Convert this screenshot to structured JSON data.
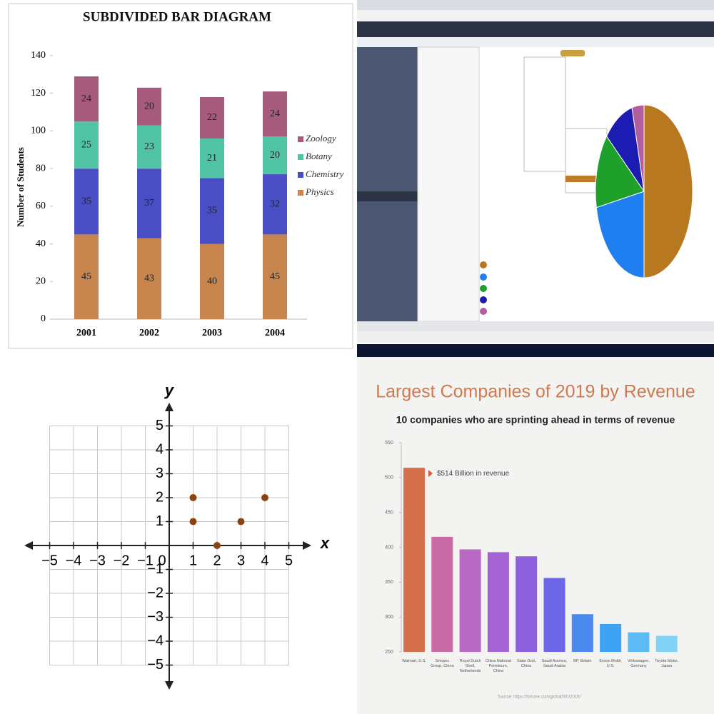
{
  "chart_data": [
    {
      "type": "stacked_bar",
      "title": "SUBDIVIDED BAR DIAGRAM",
      "y_label": "Number of Students",
      "categories": [
        "2001",
        "2002",
        "2003",
        "2004"
      ],
      "series": [
        {
          "name": "Physics",
          "color": "#c8864e",
          "values": [
            45,
            43,
            40,
            45
          ]
        },
        {
          "name": "Chemistry",
          "color": "#4a4ec4",
          "values": [
            35,
            37,
            35,
            32
          ]
        },
        {
          "name": "Botany",
          "color": "#52c4a6",
          "values": [
            25,
            23,
            21,
            20
          ]
        },
        {
          "name": "Zoology",
          "color": "#a65a7c",
          "values": [
            24,
            20,
            22,
            24
          ]
        }
      ],
      "ylim": [
        0,
        140
      ],
      "yticks": [
        0,
        20,
        40,
        60,
        80,
        100,
        120,
        140
      ],
      "legend": "right"
    },
    {
      "type": "pie",
      "values": [
        50,
        22,
        14,
        10,
        4
      ],
      "colors": [
        "#b7781f",
        "#1f7ff0",
        "#1fa02b",
        "#1c1cb2",
        "#b05e9e"
      ]
    },
    {
      "type": "scatter",
      "x_label": "x",
      "y_label": "y",
      "color": "#8b4513",
      "grid": true,
      "x": [
        1,
        1,
        2,
        3,
        4
      ],
      "values": [
        2,
        1,
        0,
        1,
        2
      ],
      "xlim": [
        -5,
        5
      ],
      "ylim": [
        -5,
        5
      ],
      "xticks": [
        {
          "value": -5,
          "label": "−5"
        },
        {
          "value": -4,
          "label": "−4"
        },
        {
          "value": -3,
          "label": "−3"
        },
        {
          "value": -2,
          "label": "−2"
        },
        {
          "value": -1,
          "label": "−1"
        },
        0,
        1,
        2,
        3,
        4,
        5
      ],
      "yticks": [
        {
          "value": -5,
          "label": "−5"
        },
        {
          "value": -4,
          "label": "−4"
        },
        {
          "value": -3,
          "label": "−3"
        },
        {
          "value": -2,
          "label": "−2"
        },
        {
          "value": -1,
          "label": "−1"
        },
        1,
        2,
        3,
        4,
        5
      ]
    },
    {
      "type": "bar",
      "title": "Largest Companies of 2019 by Revenue",
      "subtitle": "10 companies who are sprinting ahead in terms of revenue",
      "annotation": "$514 Billion in revenue",
      "source": "Source: https://fortune.com/global500/2019/",
      "categories": [
        "Walmart, U.S.",
        "Sinopec Group, China",
        "Royal Dutch Shell, Netherlands",
        "China National Petroleum, China",
        "State Grid, China",
        "Saudi Aramco, Saudi Arabia",
        "BP, Britain",
        "Exxon Mobil, U.S.",
        "Volkswagen, Germany",
        "Toyota Motor, Japan"
      ],
      "values": [
        514,
        415,
        397,
        393,
        387,
        356,
        304,
        290,
        278,
        273
      ],
      "colors": [
        "#d4714a",
        "#c96ca6",
        "#b869c4",
        "#a463d2",
        "#8d60de",
        "#6d66e6",
        "#4a88ee",
        "#3ca2f1",
        "#5cbaf4",
        "#80d2f7"
      ],
      "ylim": [
        250,
        550
      ],
      "yticks": [
        250,
        300,
        350,
        400,
        450,
        500,
        550
      ]
    }
  ]
}
